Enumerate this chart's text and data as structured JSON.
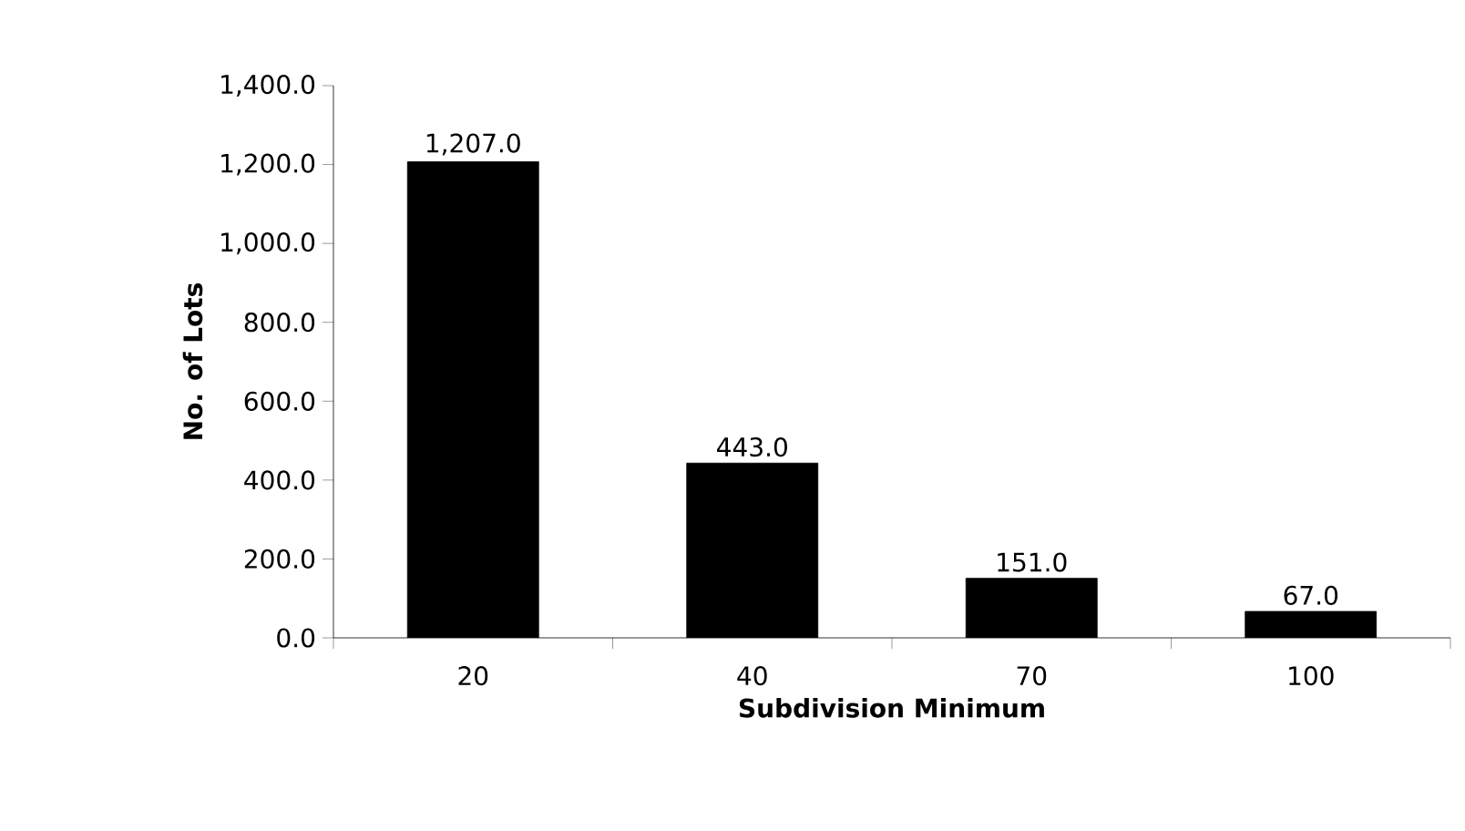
{
  "chart_data": {
    "type": "bar",
    "xlabel": "Subdivision Minimum",
    "ylabel": "No. of Lots",
    "categories": [
      "20",
      "40",
      "70",
      "100"
    ],
    "values": [
      1207,
      443,
      151,
      67
    ],
    "value_labels": [
      "1,207.0",
      "443.0",
      "151.0",
      "67.0"
    ],
    "color": "#000000",
    "ylim": [
      0,
      1400
    ],
    "yticks": [
      {
        "value": 0,
        "label": "0.0"
      },
      {
        "value": 200,
        "label": "200.0"
      },
      {
        "value": 400,
        "label": "400.0"
      },
      {
        "value": 600,
        "label": "600.0"
      },
      {
        "value": 800,
        "label": "800.0"
      },
      {
        "value": 1000,
        "label": "1,000.0"
      },
      {
        "value": 1200,
        "label": "1,200.0"
      },
      {
        "value": 1400,
        "label": "1,400.0"
      }
    ],
    "grid": false
  }
}
